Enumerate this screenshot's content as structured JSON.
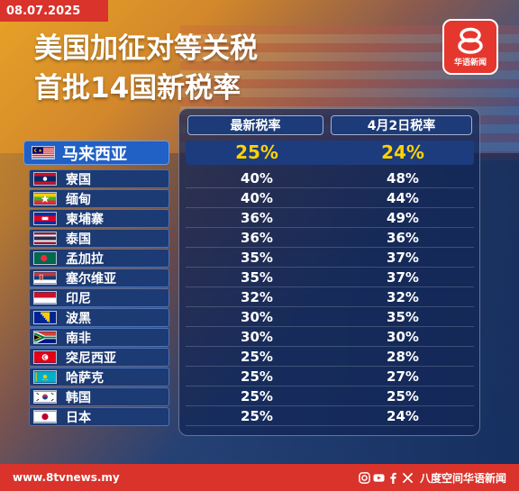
{
  "date": "08.07.2025",
  "title_line1": "美国加征对等关税",
  "title_line2": "首批14国新税率",
  "logo": {
    "icon": "8tv-logo-icon",
    "text": "华语新闻",
    "color": "#e5372e"
  },
  "columns": {
    "new_rate": "最新税率",
    "april_rate": "4月2日税率"
  },
  "highlight": {
    "country": "马来西亚",
    "flag": "malaysia",
    "new_rate": "25%",
    "april_rate": "24%",
    "color": "#ffd200"
  },
  "rows": [
    {
      "country": "寮国",
      "flag": "laos",
      "new_rate": "40%",
      "april_rate": "48%"
    },
    {
      "country": "缅甸",
      "flag": "myanmar",
      "new_rate": "40%",
      "april_rate": "44%"
    },
    {
      "country": "柬埔寨",
      "flag": "cambodia",
      "new_rate": "36%",
      "april_rate": "49%"
    },
    {
      "country": "泰国",
      "flag": "thailand",
      "new_rate": "36%",
      "april_rate": "36%"
    },
    {
      "country": "孟加拉",
      "flag": "bangladesh",
      "new_rate": "35%",
      "april_rate": "37%"
    },
    {
      "country": "塞尔维亚",
      "flag": "serbia",
      "new_rate": "35%",
      "april_rate": "37%"
    },
    {
      "country": "印尼",
      "flag": "indonesia",
      "new_rate": "32%",
      "april_rate": "32%"
    },
    {
      "country": "波黑",
      "flag": "bosnia",
      "new_rate": "30%",
      "april_rate": "35%"
    },
    {
      "country": "南非",
      "flag": "south-africa",
      "new_rate": "30%",
      "april_rate": "30%"
    },
    {
      "country": "突尼西亚",
      "flag": "tunisia",
      "new_rate": "25%",
      "april_rate": "28%"
    },
    {
      "country": "哈萨克",
      "flag": "kazakhstan",
      "new_rate": "25%",
      "april_rate": "27%"
    },
    {
      "country": "韩国",
      "flag": "south-korea",
      "new_rate": "25%",
      "april_rate": "25%"
    },
    {
      "country": "日本",
      "flag": "japan",
      "new_rate": "25%",
      "april_rate": "24%"
    }
  ],
  "footer": {
    "url": "www.8tvnews.my",
    "social_icons": [
      "instagram-icon",
      "youtube-icon",
      "facebook-icon",
      "x-icon"
    ],
    "handle": "八度空间华语新闻"
  },
  "colors": {
    "accent_red": "#d9332b",
    "panel_blue": "#1d3b78",
    "highlight_blue": "#2160c4"
  }
}
